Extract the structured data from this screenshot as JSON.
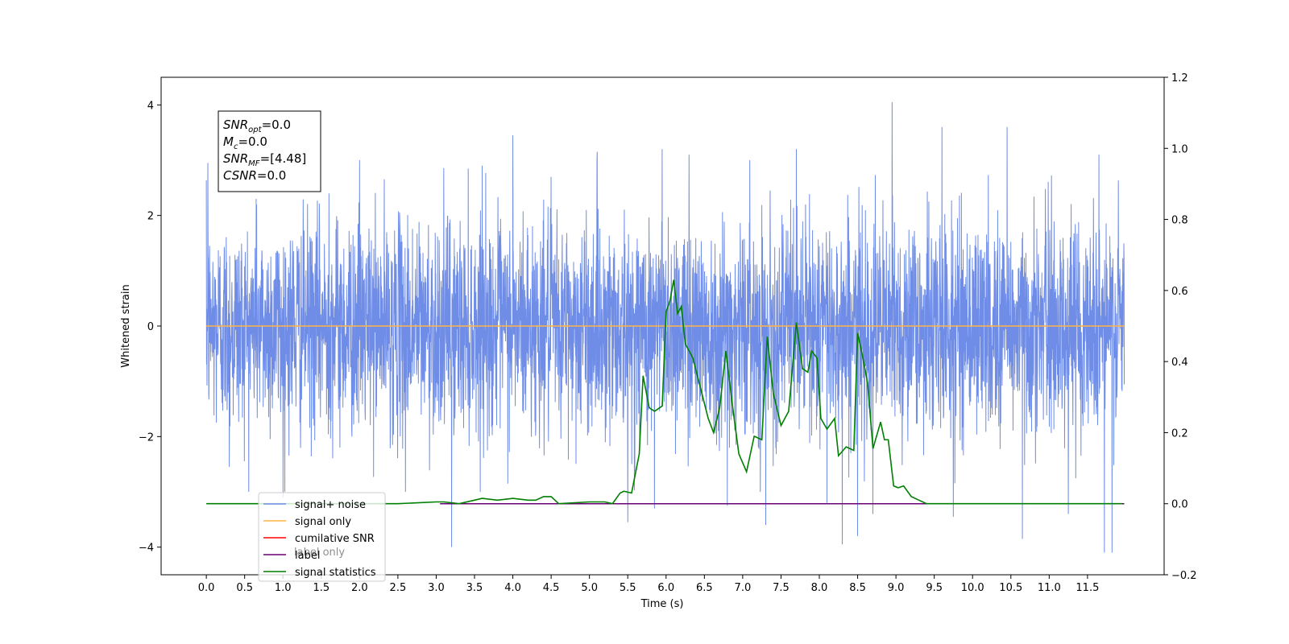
{
  "chart_data": {
    "type": "line",
    "xlabel": "Time (s)",
    "ylabel_left": "Whitened strain",
    "ylabel_right": "",
    "xlim": [
      -0.59,
      12.5
    ],
    "ylim_left": [
      -4.5,
      4.5
    ],
    "ylim_right": [
      -0.2,
      1.2
    ],
    "x_ticks": [
      0.0,
      0.5,
      1.0,
      1.5,
      2.0,
      2.5,
      3.0,
      3.5,
      4.0,
      4.5,
      5.0,
      5.5,
      6.0,
      6.5,
      7.0,
      7.5,
      8.0,
      8.5,
      9.0,
      9.5,
      10.0,
      10.5,
      11.0,
      11.5
    ],
    "x_tick_labels": [
      "0.0",
      "0.5",
      "1.0",
      "1.5",
      "2.0",
      "2.5",
      "3.0",
      "3.5",
      "4.0",
      "4.5",
      "5.0",
      "5.5",
      "6.0",
      "6.5",
      "7.0",
      "7.5",
      "8.0",
      "8.5",
      "9.0",
      "9.5",
      "10.0",
      "10.5",
      "11.0",
      "11.5"
    ],
    "y_left_ticks": [
      -4,
      -2,
      0,
      2,
      4
    ],
    "y_left_tick_labels": [
      "−4",
      "−2",
      "0",
      "2",
      "4"
    ],
    "y_right_ticks": [
      -0.2,
      0.0,
      0.2,
      0.4,
      0.6,
      0.8,
      1.0,
      1.2
    ],
    "y_right_tick_labels": [
      "−0.2",
      "0.0",
      "0.2",
      "0.4",
      "0.6",
      "0.8",
      "1.0",
      "1.2"
    ],
    "grid": false,
    "legend_position": "lower-left",
    "series": [
      {
        "name": "signal+ noise",
        "axis": "left",
        "color": "#6f8de6",
        "kind": "noise",
        "x_range": [
          0.0,
          11.98
        ],
        "approx_mean": 0.0,
        "approx_std": 0.95,
        "peaks": [
          {
            "x": 0.02,
            "y": 2.95
          },
          {
            "x": 0.3,
            "y": -2.55
          },
          {
            "x": 0.65,
            "y": 2.3
          },
          {
            "x": 1.0,
            "y": -3.1
          },
          {
            "x": 1.6,
            "y": 2.4
          },
          {
            "x": 2.0,
            "y": 3.0
          },
          {
            "x": 2.6,
            "y": -3.0
          },
          {
            "x": 3.2,
            "y": -4.0
          },
          {
            "x": 3.6,
            "y": 2.9
          },
          {
            "x": 4.0,
            "y": 3.45
          },
          {
            "x": 4.5,
            "y": 2.7
          },
          {
            "x": 5.1,
            "y": 3.15
          },
          {
            "x": 5.5,
            "y": -3.55
          },
          {
            "x": 5.85,
            "y": -3.3
          },
          {
            "x": 5.95,
            "y": 3.2
          },
          {
            "x": 6.3,
            "y": 3.1
          },
          {
            "x": 6.8,
            "y": -3.25
          },
          {
            "x": 7.3,
            "y": -3.6
          },
          {
            "x": 7.7,
            "y": 3.2
          },
          {
            "x": 8.1,
            "y": -3.2
          },
          {
            "x": 8.3,
            "y": -3.95
          },
          {
            "x": 8.5,
            "y": -3.8
          },
          {
            "x": 8.7,
            "y": -3.4
          },
          {
            "x": 8.95,
            "y": 4.05
          },
          {
            "x": 9.6,
            "y": 3.6
          },
          {
            "x": 9.75,
            "y": -3.45
          },
          {
            "x": 10.45,
            "y": 3.6
          },
          {
            "x": 10.65,
            "y": -3.85
          },
          {
            "x": 11.25,
            "y": -3.4
          },
          {
            "x": 11.65,
            "y": 3.1
          },
          {
            "x": 11.72,
            "y": -4.1
          },
          {
            "x": 11.82,
            "y": -4.1
          }
        ]
      },
      {
        "name": "signal only",
        "axis": "left",
        "color": "#ffb347",
        "x": [
          0.0,
          11.98
        ],
        "y": [
          0.0,
          0.0
        ]
      },
      {
        "name": "cumilative SNR",
        "axis": "right",
        "color": "#ff0000",
        "x": [],
        "y": []
      },
      {
        "name": "label",
        "axis": "right",
        "color": "#6a0073",
        "x": [
          3.05,
          11.98
        ],
        "y": [
          0.0,
          0.0
        ]
      },
      {
        "name": "signal statistics",
        "axis": "right",
        "color": "#007f00",
        "x": [
          0.0,
          0.5,
          1.0,
          1.5,
          2.0,
          2.5,
          3.0,
          3.1,
          3.3,
          3.5,
          3.6,
          3.8,
          4.0,
          4.2,
          4.3,
          4.4,
          4.5,
          4.6,
          5.0,
          5.2,
          5.3,
          5.4,
          5.45,
          5.55,
          5.65,
          5.7,
          5.78,
          5.85,
          5.95,
          6.0,
          6.05,
          6.1,
          6.15,
          6.2,
          6.25,
          6.35,
          6.45,
          6.55,
          6.62,
          6.7,
          6.78,
          6.87,
          6.95,
          7.05,
          7.15,
          7.25,
          7.32,
          7.4,
          7.5,
          7.6,
          7.7,
          7.78,
          7.85,
          7.9,
          7.97,
          8.02,
          8.1,
          8.2,
          8.25,
          8.35,
          8.45,
          8.5,
          8.56,
          8.63,
          8.7,
          8.8,
          8.85,
          8.9,
          8.97,
          9.03,
          9.1,
          9.2,
          9.3,
          9.4,
          9.5,
          10.0,
          10.5,
          11.0,
          11.5,
          11.95
        ],
        "y": [
          0.0,
          0.0,
          0.0,
          0.0,
          0.0,
          0.0,
          0.005,
          0.005,
          0.0,
          0.01,
          0.015,
          0.01,
          0.015,
          0.01,
          0.01,
          0.02,
          0.02,
          0.0,
          0.005,
          0.005,
          0.0,
          0.03,
          0.035,
          0.03,
          0.14,
          0.36,
          0.27,
          0.26,
          0.275,
          0.54,
          0.57,
          0.63,
          0.535,
          0.555,
          0.45,
          0.41,
          0.325,
          0.24,
          0.2,
          0.27,
          0.43,
          0.27,
          0.14,
          0.09,
          0.19,
          0.18,
          0.47,
          0.31,
          0.22,
          0.26,
          0.51,
          0.38,
          0.37,
          0.43,
          0.41,
          0.24,
          0.21,
          0.24,
          0.135,
          0.16,
          0.15,
          0.48,
          0.42,
          0.34,
          0.155,
          0.23,
          0.18,
          0.18,
          0.05,
          0.045,
          0.05,
          0.02,
          0.01,
          0.0,
          0.0,
          0.0,
          0.0,
          0.0,
          0.0,
          0.0
        ]
      }
    ],
    "legend": [
      "signal+ noise",
      "signal only",
      "cumilative SNR",
      "label",
      "signal statistics"
    ],
    "legend_ghost_text": [
      "label only"
    ],
    "annotation_lines": [
      {
        "base": "SNR",
        "sub": "opt",
        "value": "=0.0"
      },
      {
        "base": "M",
        "sub": "c",
        "value": "=0.0"
      },
      {
        "base": "SNR",
        "sub": "MF",
        "value": "=[4.48]"
      },
      {
        "base": "CSNR",
        "sub": "",
        "value": "=0.0"
      }
    ]
  }
}
